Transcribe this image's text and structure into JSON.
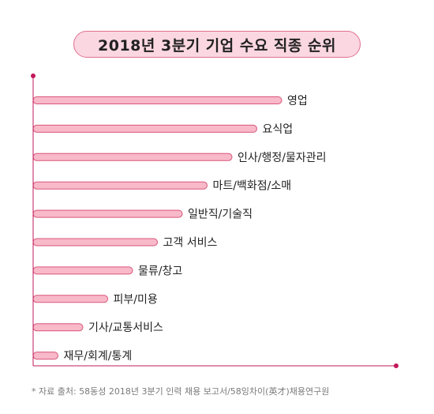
{
  "chart_data": {
    "type": "bar",
    "orientation": "horizontal",
    "title": "2018년 3분기 기업 수요 직종 순위",
    "categories": [
      "영업",
      "요식업",
      "인사/행정/물자관리",
      "마트/백화점/소매",
      "일반직/기술직",
      "고객 서비스",
      "물류/창고",
      "피부/미용",
      "기사/교통서비스",
      "재무/회계/통계"
    ],
    "values": [
      10,
      9,
      8,
      7,
      6,
      5,
      4,
      3,
      2,
      1
    ],
    "value_semantics": "rank order (no numeric axis shown)",
    "xlim": [
      0,
      10
    ],
    "grid": false,
    "colors": {
      "bar_fill": "#f8b9c9",
      "bar_stroke": "#d9557a",
      "axis": "#c2185b",
      "title_bg": "#fbd7e2"
    }
  },
  "footer": {
    "source": "* 자료 출처: 58동성 2018년 3분기 인력 채용 보고서/58잉차이(英才)채용연구원"
  }
}
